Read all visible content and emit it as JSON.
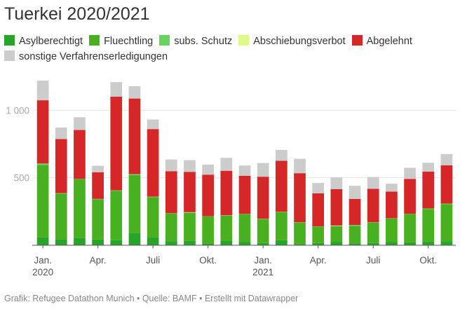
{
  "chart_data": {
    "type": "bar",
    "stacked": true,
    "title": "Tuerkei 2020/2021",
    "categories": [
      "2020-01",
      "2020-02",
      "2020-03",
      "2020-04",
      "2020-05",
      "2020-06",
      "2020-07",
      "2020-08",
      "2020-09",
      "2020-10",
      "2020-11",
      "2020-12",
      "2021-01",
      "2021-02",
      "2021-03",
      "2021-04",
      "2021-05",
      "2021-06",
      "2021-07",
      "2021-08",
      "2021-09",
      "2021-10",
      "2021-11"
    ],
    "series": [
      {
        "name": "Asylberechtigt",
        "color": "#28a428",
        "values": [
          55,
          43,
          50,
          40,
          35,
          90,
          55,
          28,
          29,
          12,
          33,
          21,
          14,
          35,
          7,
          14,
          21,
          12,
          14,
          21,
          19,
          24,
          28
        ]
      },
      {
        "name": "Fluechtling",
        "color": "#49b020",
        "values": [
          540,
          339,
          437,
          300,
          368,
          429,
          300,
          206,
          210,
          199,
          184,
          208,
          178,
          209,
          159,
          121,
          118,
          130,
          150,
          175,
          210,
          242,
          274
        ]
      },
      {
        "name": "subs. Schutz",
        "color": "#66d45e",
        "values": [
          10,
          3,
          3,
          2,
          3,
          7,
          4,
          2,
          2,
          2,
          3,
          2,
          2,
          2,
          2,
          2,
          3,
          6,
          4,
          2,
          2,
          5,
          5
        ]
      },
      {
        "name": "Abschiebungsverbot",
        "color": "#ddf98a",
        "values": [
          0,
          0,
          0,
          0,
          0,
          0,
          0,
          0,
          2,
          0,
          0,
          0,
          0,
          0,
          0,
          0,
          2,
          0,
          0,
          0,
          0,
          0,
          0
        ]
      },
      {
        "name": "Abgelehnt",
        "color": "#d62728",
        "values": [
          470,
          402,
          364,
          198,
          696,
          562,
          502,
          312,
          300,
          309,
          331,
          283,
          313,
          379,
          365,
          246,
          271,
          194,
          249,
          198,
          260,
          274,
          285
        ]
      },
      {
        "name": "sonstige Verfahrenserledigungen",
        "color": "#cccccc",
        "values": [
          146,
          85,
          95,
          48,
          108,
          91,
          71,
          87,
          87,
          75,
          96,
          76,
          102,
          81,
          107,
          77,
          87,
          97,
          88,
          59,
          82,
          66,
          83
        ]
      }
    ],
    "x_ticks": [
      {
        "index": 0,
        "label": "Jan.",
        "sub": "2020"
      },
      {
        "index": 3,
        "label": "Apr.",
        "sub": ""
      },
      {
        "index": 6,
        "label": "Juli",
        "sub": ""
      },
      {
        "index": 9,
        "label": "Okt.",
        "sub": ""
      },
      {
        "index": 12,
        "label": "Jan.",
        "sub": "2021"
      },
      {
        "index": 15,
        "label": "Apr.",
        "sub": ""
      },
      {
        "index": 18,
        "label": "Juli",
        "sub": ""
      },
      {
        "index": 21,
        "label": "Okt.",
        "sub": ""
      }
    ],
    "y_ticks": [
      {
        "value": 500,
        "label": "500"
      },
      {
        "value": 1000,
        "label": "1 000"
      }
    ],
    "ylim": [
      0,
      1250
    ],
    "grid": true,
    "legend_position": "top-left",
    "xlabel": "",
    "ylabel": ""
  },
  "footer": "Grafik: Refugee Datathon Munich • Quelle: BAMF • Erstellt mit Datawrapper"
}
